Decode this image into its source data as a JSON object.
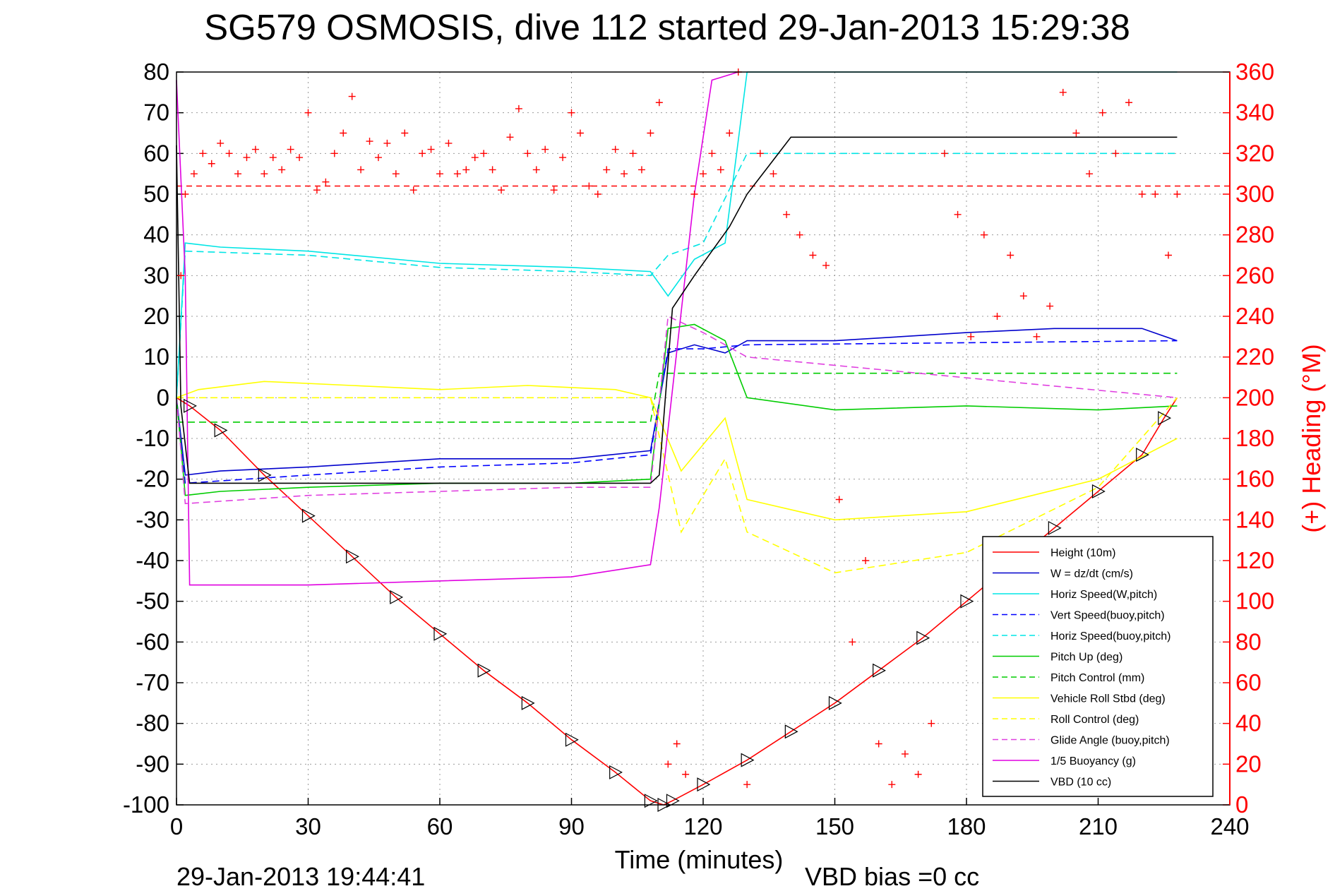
{
  "chart_data": {
    "type": "line",
    "title": "SG579 OSMOSIS, dive 112 started 29-Jan-2013 15:29:38",
    "xlabel": "Time (minutes)",
    "ylabel": "",
    "ylabel_right": "(+) Heading (°M)",
    "xlim": [
      0,
      240
    ],
    "ylim": [
      -100,
      80
    ],
    "ylim_right": [
      0,
      360
    ],
    "x_ticks": [
      "0",
      "30",
      "60",
      "90",
      "120",
      "150",
      "180",
      "210",
      "240"
    ],
    "y_ticks": [
      "80",
      "70",
      "60",
      "50",
      "40",
      "30",
      "20",
      "10",
      "0",
      "-10",
      "-20",
      "-30",
      "-40",
      "-50",
      "-60",
      "-70",
      "-80",
      "-90",
      "-100"
    ],
    "y_right_ticks": [
      "360",
      "340",
      "320",
      "300",
      "280",
      "260",
      "240",
      "220",
      "200",
      "180",
      "160",
      "140",
      "120",
      "100",
      "80",
      "60",
      "40",
      "20",
      "0"
    ],
    "grid": true,
    "legend_position": "bottom-right",
    "footer_left": "29-Jan-2013 19:44:41",
    "footer_right": "VBD bias =0 cc",
    "series": [
      {
        "name": "Height (10m)",
        "color": "#ff0000",
        "style": "solid",
        "x": [
          0,
          3,
          10,
          20,
          30,
          40,
          50,
          60,
          70,
          80,
          90,
          100,
          108,
          111,
          113,
          120,
          130,
          140,
          150,
          160,
          170,
          180,
          190,
          200,
          210,
          220,
          225,
          228
        ],
        "y": [
          0,
          -2,
          -8,
          -19,
          -29,
          -39,
          -49,
          -58,
          -67,
          -75,
          -84,
          -92,
          -99,
          -100,
          -99,
          -95,
          -89,
          -82,
          -75,
          -67,
          -59,
          -50,
          -41,
          -32,
          -23,
          -14,
          -5,
          0
        ]
      },
      {
        "name": "W = dz/dt (cm/s)",
        "color": "#0000cc",
        "style": "solid",
        "x": [
          0,
          2,
          10,
          30,
          60,
          90,
          108,
          112,
          118,
          125,
          130,
          150,
          180,
          200,
          220,
          228
        ],
        "y": [
          0,
          -19,
          -18,
          -17,
          -15,
          -15,
          -13,
          11,
          13,
          11,
          14,
          14,
          16,
          17,
          17,
          14
        ]
      },
      {
        "name": "Horiz Speed(W,pitch)",
        "color": "#00e5e5",
        "style": "solid",
        "x": [
          0,
          2,
          10,
          30,
          60,
          90,
          108,
          112,
          118,
          125,
          130,
          228
        ],
        "y": [
          0,
          38,
          37,
          36,
          33,
          32,
          31,
          25,
          34,
          38,
          80,
          80
        ]
      },
      {
        "name": "Vert Speed(buoy,pitch)",
        "color": "#0000ff",
        "style": "dashed",
        "x": [
          0,
          2,
          30,
          60,
          90,
          108,
          112,
          120,
          130,
          228
        ],
        "y": [
          0,
          -21,
          -19,
          -17,
          -16,
          -14,
          12,
          12,
          13,
          14
        ]
      },
      {
        "name": "Horiz Speed(buoy,pitch)",
        "color": "#00e5e5",
        "style": "dashed",
        "x": [
          0,
          2,
          30,
          60,
          90,
          108,
          112,
          120,
          130,
          228
        ],
        "y": [
          0,
          36,
          35,
          32,
          31,
          30,
          35,
          38,
          60,
          60
        ]
      },
      {
        "name": "Pitch Up (deg)",
        "color": "#00cc00",
        "style": "solid",
        "x": [
          0,
          2,
          10,
          30,
          60,
          90,
          108,
          112,
          118,
          125,
          130,
          150,
          180,
          210,
          228
        ],
        "y": [
          0,
          -24,
          -23,
          -22,
          -21,
          -21,
          -20,
          17,
          18,
          14,
          0,
          -3,
          -2,
          -3,
          -2
        ]
      },
      {
        "name": "Pitch Control (mm)",
        "color": "#00cc00",
        "style": "dashed",
        "x": [
          0,
          5,
          108,
          110,
          228
        ],
        "y": [
          -6,
          -6,
          -6,
          6,
          6
        ]
      },
      {
        "name": "Vehicle Roll Stbd (deg)",
        "color": "#ffff00",
        "style": "solid",
        "x": [
          0,
          5,
          20,
          40,
          60,
          80,
          100,
          108,
          115,
          125,
          130,
          150,
          180,
          210,
          228
        ],
        "y": [
          0,
          2,
          4,
          3,
          2,
          3,
          2,
          0,
          -18,
          -5,
          -25,
          -30,
          -28,
          -20,
          -10
        ]
      },
      {
        "name": "Roll Control (deg)",
        "color": "#ffff00",
        "style": "dashed",
        "x": [
          0,
          5,
          20,
          40,
          60,
          80,
          100,
          108,
          115,
          125,
          130,
          150,
          180,
          210,
          228
        ],
        "y": [
          0,
          0,
          0,
          0,
          0,
          0,
          0,
          0,
          -33,
          -15,
          -33,
          -43,
          -38,
          -22,
          0
        ]
      },
      {
        "name": "Glide Angle (buoy,pitch)",
        "color": "#e040e0",
        "style": "dashed",
        "x": [
          0,
          2,
          30,
          60,
          90,
          108,
          112,
          120,
          130,
          228
        ],
        "y": [
          0,
          -26,
          -24,
          -23,
          -22,
          -22,
          20,
          16,
          10,
          0
        ]
      },
      {
        "name": "1/5 Buoyancy (g)",
        "color": "#e000e0",
        "style": "solid",
        "x": [
          0,
          2,
          3,
          30,
          60,
          90,
          108,
          110,
          118,
          122,
          128
        ],
        "y": [
          78,
          30,
          -46,
          -46,
          -45,
          -44,
          -41,
          -27,
          50,
          78,
          80
        ]
      },
      {
        "name": "VBD (10 cc)",
        "color": "#000000",
        "style": "solid",
        "x": [
          0,
          1,
          3,
          108,
          110,
          113,
          118,
          122,
          126,
          130,
          135,
          140,
          228
        ],
        "y": [
          62,
          -2,
          -21,
          -21,
          -19,
          22,
          30,
          36,
          42,
          50,
          57,
          64,
          64
        ]
      }
    ],
    "heading": {
      "name": "Heading",
      "color": "#ff0000",
      "marker": "+",
      "axis": "right",
      "reference_line": 304,
      "x": [
        1,
        2,
        4,
        6,
        8,
        10,
        12,
        14,
        16,
        18,
        20,
        22,
        24,
        26,
        28,
        30,
        32,
        34,
        36,
        38,
        40,
        42,
        44,
        46,
        48,
        50,
        52,
        54,
        56,
        58,
        60,
        62,
        64,
        66,
        68,
        70,
        72,
        74,
        76,
        78,
        80,
        82,
        84,
        86,
        88,
        90,
        92,
        94,
        96,
        98,
        100,
        102,
        104,
        106,
        108,
        110,
        112,
        114,
        116,
        118,
        120,
        122,
        124,
        126,
        128,
        130,
        133,
        136,
        139,
        142,
        145,
        148,
        151,
        154,
        157,
        160,
        163,
        166,
        169,
        172,
        175,
        178,
        181,
        184,
        187,
        190,
        193,
        196,
        199,
        202,
        205,
        208,
        211,
        214,
        217,
        220,
        223,
        226,
        228
      ],
      "y": [
        260,
        300,
        310,
        320,
        315,
        325,
        320,
        310,
        318,
        322,
        310,
        318,
        312,
        322,
        318,
        340,
        302,
        306,
        320,
        330,
        348,
        312,
        326,
        318,
        325,
        310,
        330,
        302,
        320,
        322,
        310,
        325,
        310,
        312,
        318,
        320,
        312,
        302,
        328,
        342,
        320,
        312,
        322,
        302,
        318,
        340,
        330,
        304,
        300,
        312,
        322,
        310,
        320,
        312,
        330,
        345,
        20,
        30,
        15,
        300,
        310,
        320,
        312,
        330,
        360,
        10,
        320,
        310,
        290,
        280,
        270,
        265,
        150,
        80,
        120,
        30,
        10,
        25,
        15,
        40,
        320,
        290,
        230,
        280,
        240,
        270,
        250,
        230,
        245,
        350,
        330,
        310,
        340,
        320,
        345,
        300,
        300,
        270,
        300
      ]
    }
  }
}
